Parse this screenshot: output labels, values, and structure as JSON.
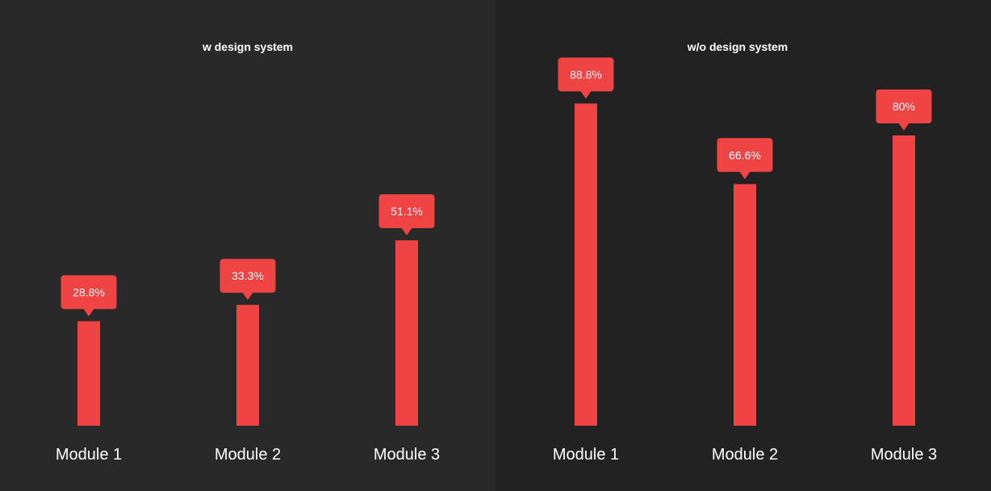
{
  "chart_data": [
    {
      "type": "bar",
      "title": "w design system",
      "categories": [
        "Module 1",
        "Module 2",
        "Module 3"
      ],
      "values": [
        28.8,
        33.3,
        51.1
      ],
      "value_labels": [
        "28.8%",
        "33.3%",
        "51.1%"
      ],
      "ylim": [
        0,
        100
      ],
      "grid": false,
      "legend": "none",
      "bar_color": "#ee4444",
      "background_color": "#292929"
    },
    {
      "type": "bar",
      "title": "w/o design system",
      "categories": [
        "Module 1",
        "Module 2",
        "Module 3"
      ],
      "values": [
        88.8,
        66.6,
        80
      ],
      "value_labels": [
        "88.8%",
        "66.6%",
        "80%"
      ],
      "ylim": [
        0,
        100
      ],
      "grid": false,
      "legend": "none",
      "bar_color": "#ee4444",
      "background_color": "#222222"
    }
  ]
}
